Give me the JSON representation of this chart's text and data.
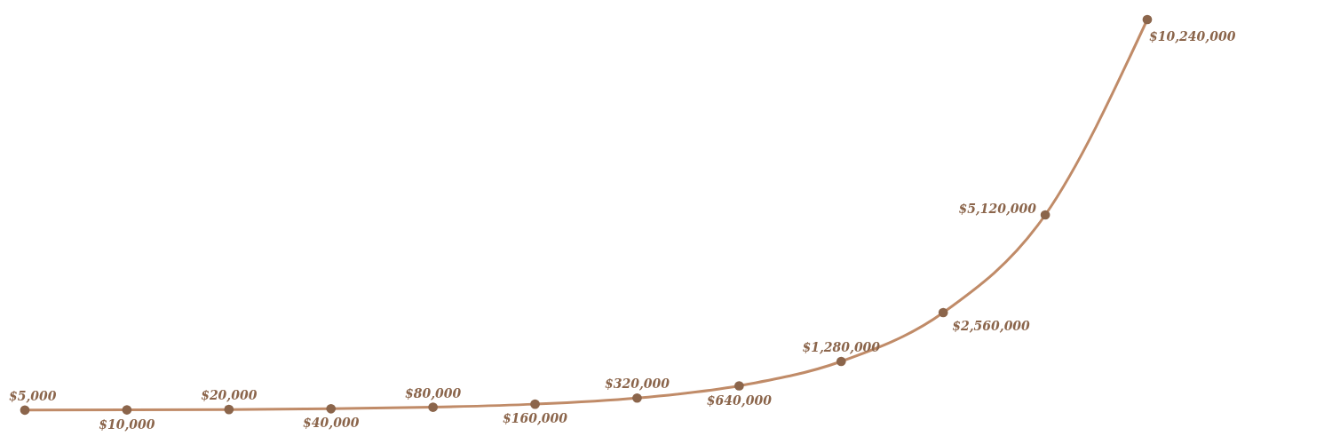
{
  "chart_data": {
    "type": "line",
    "categories": [
      null,
      null,
      null,
      null,
      null,
      null,
      null,
      null,
      null,
      null,
      null,
      null
    ],
    "series": [
      {
        "color": "#c08b68",
        "values": [
          5000,
          10000,
          20000,
          40000,
          80000,
          160000,
          320000,
          640000,
          1280000,
          2560000,
          5120000,
          10240000
        ],
        "value_labels": [
          "$5,000",
          "$10,000",
          "$20,000",
          "$40,000",
          "$80,000",
          "$160,000",
          "$320,000",
          "$640,000",
          "$1,280,000",
          "$2,560,000",
          "$5,120,000",
          "$10,240,000"
        ]
      }
    ],
    "marker": "circle",
    "line_style": "solid"
  }
}
